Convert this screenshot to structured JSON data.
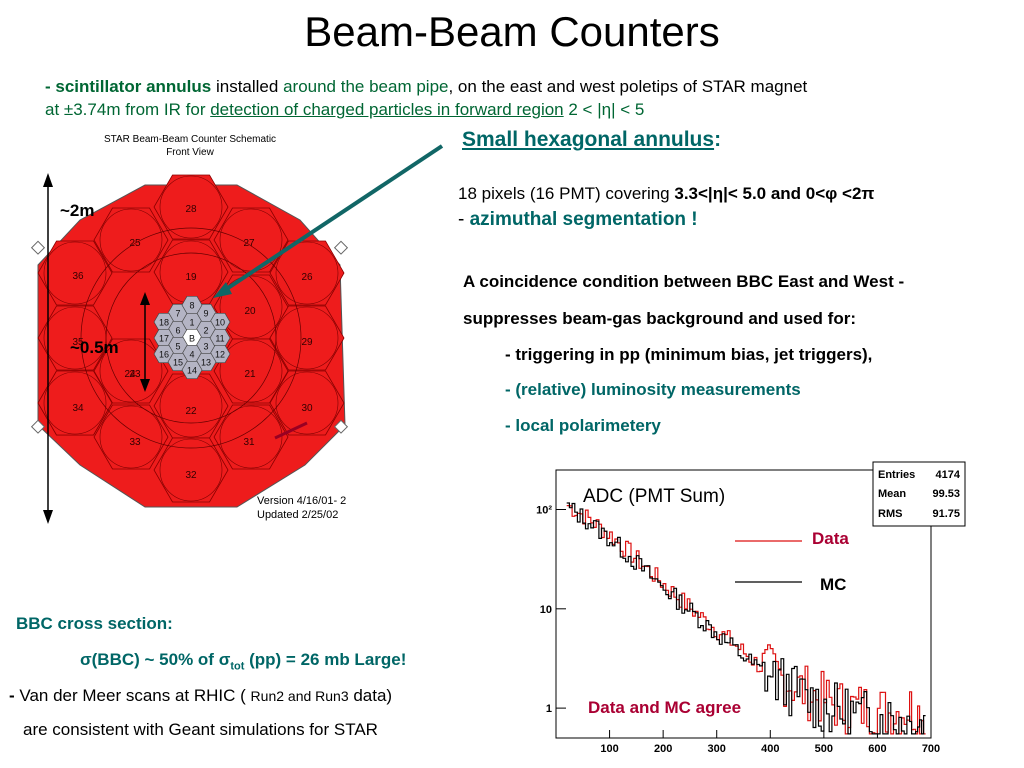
{
  "title": "Beam-Beam Counters",
  "intro": {
    "line1": {
      "bold": "- scintillator annulus",
      "installed": " installed ",
      "around": "around the beam pipe",
      "rest": ",  on the east and  west poletips of STAR magnet"
    },
    "line2": {
      "at": "at ±3.74m  from IR for ",
      "detection": "detection of charged particles in forward region",
      "eta": " 2 < |η| < 5"
    }
  },
  "small_hex": {
    "label": "Small hexagonal annulus",
    "colon": ":"
  },
  "pixels": {
    "text": "18 pixels (16 PMT)  covering ",
    "bold": "3.3<|η|< 5.0 and  0<φ <2π",
    "dash": "- ",
    "azimuthal": "azimuthal segmentation !"
  },
  "coincidence": {
    "line1": "A coincidence condition between BBC East and West -",
    "line2": "suppresses beam-gas background and used for:",
    "item1": "-  triggering in pp (minimum bias, jet triggers),",
    "item2": "-  (relative) luminosity measurements",
    "item3": "-  local polarimetery"
  },
  "schematic": {
    "title1": "STAR Beam-Beam Counter Schematic",
    "title2": "Front View",
    "size_large": "~2m",
    "size_small": "~0.5m",
    "version1": "Version 4/16/01- 2",
    "version2": "Updated 2/25/02",
    "large_tiles": [
      "28",
      "25",
      "27",
      "36",
      "19",
      "26",
      "35",
      "20",
      "29",
      "23",
      "24",
      "21",
      "30",
      "34",
      "22",
      "33",
      "31",
      "32"
    ],
    "small_tiles": [
      "7",
      "9",
      "8",
      "18",
      "10",
      "6",
      "1",
      "2",
      "17",
      "B",
      "3",
      "5",
      "4",
      "11",
      "16",
      "12",
      "15",
      "13",
      "14"
    ],
    "colors": {
      "large": "#ee1c1c",
      "small": "#b4b4c4"
    }
  },
  "cross_section": {
    "header": "BBC cross section:",
    "formula": {
      "s1": "σ(",
      "bbc": "BBC",
      "s2": ")  ~ 50% of ",
      "s3": "σ",
      "sub": "tot",
      "s4": " (pp) = 26 mb  Large!"
    },
    "vdm": {
      "dash": "- ",
      "a": "Van der Meer scans at RHIC ( ",
      "run": "Run2 and Run3",
      "b": " data)"
    },
    "consistent": "are consistent with Geant simulations for STAR"
  },
  "chart_data": {
    "type": "line",
    "title": "ADC (PMT Sum)",
    "xlim": [
      0,
      700
    ],
    "x_ticks": [
      "100",
      "200",
      "300",
      "400",
      "500",
      "600",
      "700"
    ],
    "y_ticks": [
      "1",
      "10",
      "10²"
    ],
    "yscale": "log",
    "legend": [
      {
        "name": "Data",
        "color": "#dd1111"
      },
      {
        "name": "MC",
        "color": "#000000"
      }
    ],
    "stats": {
      "Entries": "4174",
      "Mean": "99.53",
      "RMS": "91.75"
    },
    "annotation": "Data and MC agree",
    "series": [
      {
        "name": "Data",
        "color": "#dd1111",
        "x": [
          20,
          60,
          100,
          140,
          180,
          220,
          260,
          300,
          340,
          380,
          420,
          460,
          500,
          540,
          580,
          620,
          660,
          690
        ],
        "y": [
          110,
          80,
          55,
          35,
          22,
          14,
          9,
          6,
          4,
          2.6,
          2,
          1.5,
          1.2,
          1,
          1,
          0.9,
          1,
          0.8
        ]
      },
      {
        "name": "MC",
        "color": "#000000",
        "x": [
          20,
          60,
          100,
          140,
          180,
          220,
          260,
          300,
          340,
          380,
          420,
          460,
          500,
          540,
          580,
          620,
          660,
          690
        ],
        "y": [
          105,
          75,
          50,
          32,
          20,
          13,
          8.5,
          5.5,
          3.6,
          2.4,
          1.8,
          1.3,
          1,
          0.9,
          0.8,
          0.8,
          0.7,
          0.7
        ]
      }
    ]
  },
  "colors": {
    "green": "#006633",
    "teal": "#006666",
    "darkred": "#aa0033",
    "arrow": "#116666"
  }
}
